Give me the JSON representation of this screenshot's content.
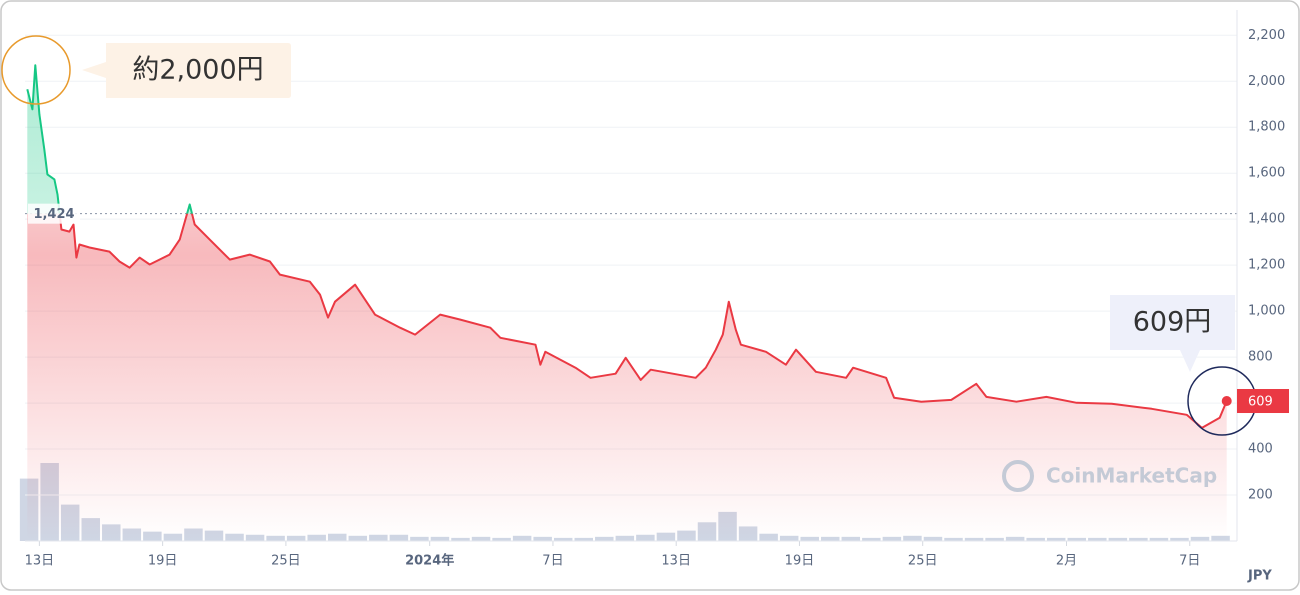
{
  "chart_data": {
    "type": "line",
    "x": [
      -0.59,
      -0.34,
      -0.2,
      0,
      0.24,
      0.39,
      0.73,
      0.88,
      1.07,
      1.46,
      1.66,
      1.8,
      1.95,
      2.44,
      3.41,
      3.9,
      4.39,
      4.88,
      5.37,
      6.34,
      6.83,
      7.32,
      7.56,
      8.29,
      9.27,
      10.24,
      11.22,
      11.71,
      13.17,
      13.66,
      14.05,
      14.39,
      15.37,
      15.85,
      16.34,
      17.56,
      18.29,
      19.51,
      20.49,
      21.95,
      22.44,
      24.15,
      24.39,
      24.63,
      26.1,
      26.83,
      28.05,
      28.54,
      29.27,
      29.76,
      31.95,
      32.44,
      32.93,
      33.27,
      33.56,
      33.9,
      34.15,
      35.37,
      36.34,
      36.83,
      37.8,
      39.27,
      39.61,
      41.22,
      41.61,
      42.93,
      44.39,
      45.61,
      46.1,
      47.56,
      49.02,
      50.49,
      52.2,
      54.15,
      55.85,
      56.59,
      57.46,
      57.8
    ],
    "series": [
      {
        "color": "#ea3943",
        "above_color": "#16c784",
        "values": [
          1965,
          1878,
          2070,
          1856,
          1704,
          1595,
          1573,
          1508,
          1355,
          1346,
          1377,
          1233,
          1290,
          1277,
          1259,
          1216,
          1189,
          1233,
          1203,
          1246,
          1311,
          1464,
          1377,
          1311,
          1224,
          1246,
          1216,
          1159,
          1128,
          1072,
          972,
          1041,
          1115,
          1050,
          985,
          928,
          898,
          985,
          963,
          928,
          884,
          854,
          767,
          823,
          754,
          710,
          728,
          797,
          701,
          745,
          710,
          754,
          832,
          898,
          1041,
          919,
          854,
          823,
          767,
          832,
          736,
          710,
          754,
          710,
          623,
          606,
          614,
          684,
          627,
          606,
          627,
          601,
          597,
          575,
          549,
          492,
          536,
          609
        ]
      }
    ],
    "reference": {
      "value": 1424,
      "label": "1,424"
    },
    "current_price": 609,
    "volume": {
      "color": "#cfd6e4",
      "values": [
        60,
        75,
        35,
        22,
        16,
        12,
        9,
        7,
        12,
        10,
        7,
        6,
        5,
        5,
        6,
        7,
        5,
        6,
        6,
        4,
        4,
        3,
        4,
        3,
        5,
        4,
        3,
        3,
        4,
        5,
        6,
        8,
        10,
        18,
        28,
        14,
        7,
        5,
        4,
        4,
        4,
        3,
        4,
        5,
        4,
        3,
        3,
        3,
        4,
        3,
        3,
        3,
        3,
        3,
        3,
        3,
        3,
        4,
        5
      ],
      "x_start": -0.5,
      "x_step": 1
    },
    "xlim": [
      -0.7,
      58.3
    ],
    "xticks": [
      {
        "value": 0,
        "label": "13日"
      },
      {
        "value": 6,
        "label": "19日"
      },
      {
        "value": 12,
        "label": "25日"
      },
      {
        "value": 19,
        "label": "2024年"
      },
      {
        "value": 25,
        "label": "7日"
      },
      {
        "value": 31,
        "label": "13日"
      },
      {
        "value": 37,
        "label": "19日"
      },
      {
        "value": 43,
        "label": "25日"
      },
      {
        "value": 50,
        "label": "2月"
      },
      {
        "value": 56,
        "label": "7日"
      }
    ],
    "ylim": [
      0,
      2310
    ],
    "yticks": [
      200,
      400,
      600,
      800,
      {
        "value": 1000,
        "label": "1,000"
      },
      {
        "value": 1200,
        "label": "1,200"
      },
      {
        "value": 1400,
        "label": "1,400"
      },
      {
        "value": 1600,
        "label": "1,600"
      },
      {
        "value": 1800,
        "label": "1,800"
      },
      {
        "value": 2000,
        "label": "2,000"
      },
      {
        "value": 2200,
        "label": "2,200"
      }
    ],
    "grid": true,
    "currency": "JPY",
    "watermark": "CoinMarketCap",
    "annotations": [
      "約2,000円",
      "609円"
    ]
  }
}
